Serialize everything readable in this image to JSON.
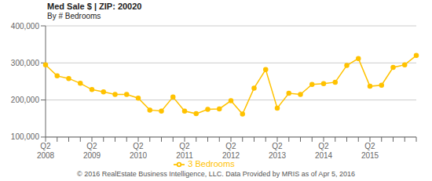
{
  "chart_data": {
    "type": "line",
    "title": "Med Sale $ | ZIP: 20020",
    "subtitle": "By # Bedrooms",
    "annotations": [
      "© 2016 RealEstate Business Intelligence, LLC. Data Provided by MRIS as of Apr 5, 2016"
    ],
    "categories": [
      "Q2\n2008",
      null,
      null,
      null,
      "Q2\n2009",
      null,
      null,
      null,
      "Q2\n2010",
      null,
      null,
      null,
      "Q2\n2011",
      null,
      null,
      null,
      "Q2\n2012",
      null,
      null,
      null,
      "Q2\n2013",
      null,
      null,
      null,
      "Q2\n2014",
      null,
      null,
      null,
      "Q2\n2015",
      null,
      null,
      null,
      null
    ],
    "series": [
      {
        "name": "3 Bedrooms",
        "color": "#FFC200",
        "marker": "circle",
        "values": [
          295000,
          265000,
          258000,
          245000,
          228000,
          222000,
          215000,
          215000,
          205000,
          173000,
          170000,
          208000,
          170000,
          163000,
          175000,
          176000,
          198000,
          162000,
          232000,
          282000,
          178000,
          218000,
          215000,
          242000,
          244000,
          248000,
          293000,
          312000,
          237000,
          240000,
          288000,
          295000,
          320000
        ]
      }
    ],
    "ylim": [
      100000,
      400000
    ],
    "yticks": [
      {
        "value": 100000,
        "label": "100,000"
      },
      {
        "value": 200000,
        "label": "200,000"
      },
      {
        "value": 300000,
        "label": "300,000"
      },
      {
        "value": 400000,
        "label": "400,000"
      }
    ],
    "grid": true,
    "legend": "bottom"
  }
}
